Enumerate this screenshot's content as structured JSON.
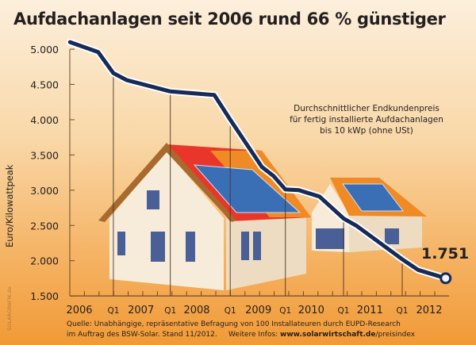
{
  "title": "Aufdachanlagen seit 2006 rund 66 % günstiger",
  "note": [
    "Durchschnittlicher Endkundenpreis",
    "für fertig installierte Aufdachanlagen",
    "bis 10 kWp (ohne USt)"
  ],
  "source": {
    "line1": "Quelle: Unabhängige, repräsentative Befragung von 100 Installateuren durch EUPD-Research",
    "line2_prefix": "im Auftrag des BSW-Solar. Stand 11/2012.     Weitere Infos: ",
    "url_bold": "www.solarwirtschaft.de",
    "url_rest": "/preisindex"
  },
  "credit": "SOLARGRAFIK.de",
  "colors": {
    "line": "#172b57",
    "line_halo": "#ffffff",
    "roof_red": "#e8372a",
    "roof_orange": "#f08a24",
    "panel": "#3a6fb6",
    "wall": "#f6ead6"
  },
  "chart_data": {
    "type": "line",
    "title": "Aufdachanlagen seit 2006 rund 66 % günstiger",
    "ylabel": "Euro/Kilowattpeak",
    "xlabel": "",
    "ylim": [
      1500,
      5000
    ],
    "yticks": [
      {
        "v": 5000,
        "label": "5.000"
      },
      {
        "v": 4500,
        "label": "4.500"
      },
      {
        "v": 4000,
        "label": "4.000"
      },
      {
        "v": 3500,
        "label": "3.500"
      },
      {
        "v": 3000,
        "label": "3.000"
      },
      {
        "v": 2500,
        "label": "2.500"
      },
      {
        "v": 2000,
        "label": "2.000"
      },
      {
        "v": 1500,
        "label": "1.500"
      }
    ],
    "xlim": [
      2005.84,
      2012.35
    ],
    "xticks": [
      {
        "x": 2006.0,
        "label": "2006"
      },
      {
        "x": 2006.58,
        "label": "Q1",
        "q": true
      },
      {
        "x": 2007.05,
        "label": "2007"
      },
      {
        "x": 2007.55,
        "label": "Q1",
        "q": true
      },
      {
        "x": 2008.0,
        "label": "2008"
      },
      {
        "x": 2008.57,
        "label": "Q1",
        "q": true
      },
      {
        "x": 2009.05,
        "label": "2009"
      },
      {
        "x": 2009.51,
        "label": "Q1",
        "q": true
      },
      {
        "x": 2009.95,
        "label": "2010"
      },
      {
        "x": 2010.5,
        "label": "Q1",
        "q": true
      },
      {
        "x": 2010.95,
        "label": "2011"
      },
      {
        "x": 2011.5,
        "label": "Q1",
        "q": true
      },
      {
        "x": 2011.96,
        "label": "2012"
      }
    ],
    "points": [
      {
        "x": 2005.84,
        "y": 5100
      },
      {
        "x": 2006.32,
        "y": 4960
      },
      {
        "x": 2006.58,
        "y": 4660
      },
      {
        "x": 2006.81,
        "y": 4560
      },
      {
        "x": 2007.55,
        "y": 4400
      },
      {
        "x": 2008.3,
        "y": 4350
      },
      {
        "x": 2008.57,
        "y": 4000
      },
      {
        "x": 2009.11,
        "y": 3330
      },
      {
        "x": 2009.31,
        "y": 3200
      },
      {
        "x": 2009.51,
        "y": 3010
      },
      {
        "x": 2009.74,
        "y": 3000
      },
      {
        "x": 2010.09,
        "y": 2910
      },
      {
        "x": 2010.5,
        "y": 2600
      },
      {
        "x": 2010.73,
        "y": 2490
      },
      {
        "x": 2011.5,
        "y": 2020
      },
      {
        "x": 2011.77,
        "y": 1870
      },
      {
        "x": 2012.24,
        "y": 1751
      }
    ],
    "last_label": "1.751",
    "grid": false
  }
}
